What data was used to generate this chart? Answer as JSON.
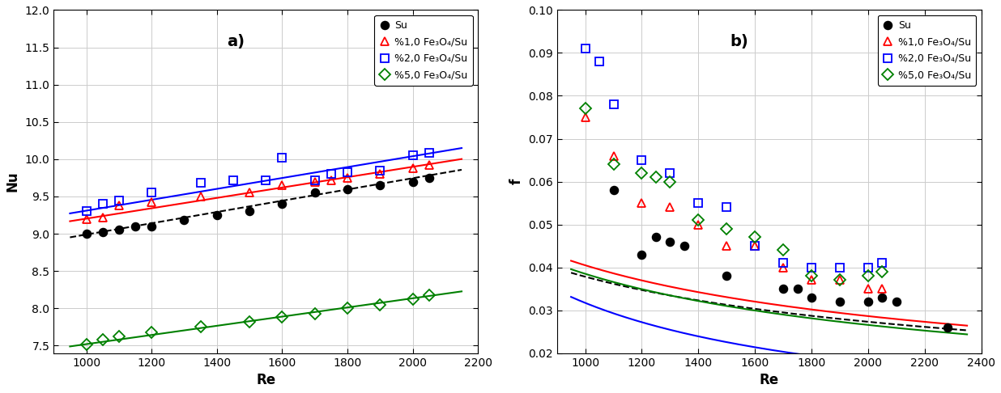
{
  "panel_a": {
    "title": "a)",
    "xlabel": "Re",
    "ylabel": "Nu",
    "xlim": [
      900,
      2200
    ],
    "ylim": [
      7.4,
      12.0
    ],
    "xticks": [
      1000,
      1200,
      1400,
      1600,
      1800,
      2000,
      2200
    ],
    "yticks": [
      7.5,
      8.0,
      8.5,
      9.0,
      9.5,
      10.0,
      10.5,
      11.0,
      11.5,
      12.0
    ],
    "series": [
      {
        "label": "Su",
        "color": "black",
        "marker": "o",
        "marker_fill": "black",
        "scatter_x": [
          1000,
          1050,
          1100,
          1150,
          1200,
          1300,
          1400,
          1500,
          1600,
          1700,
          1800,
          1900,
          2000,
          2050
        ],
        "scatter_y": [
          9.0,
          9.02,
          9.05,
          9.1,
          9.1,
          9.18,
          9.25,
          9.3,
          9.4,
          9.55,
          9.6,
          9.65,
          9.7,
          9.75
        ],
        "fit_slope": 0.000755,
        "fit_intercept": 8.235,
        "linestyle": "--"
      },
      {
        "label": "%1,0 Fe₃O₄/Su",
        "color": "red",
        "marker": "^",
        "marker_fill": "none",
        "scatter_x": [
          1000,
          1050,
          1100,
          1200,
          1350,
          1500,
          1600,
          1700,
          1750,
          1800,
          1900,
          2000,
          2050
        ],
        "scatter_y": [
          9.2,
          9.22,
          9.38,
          9.42,
          9.5,
          9.55,
          9.65,
          9.7,
          9.72,
          9.75,
          9.8,
          9.88,
          9.92
        ],
        "fit_slope": 0.000695,
        "fit_intercept": 8.508,
        "linestyle": "-"
      },
      {
        "label": "%2,0 Fe₃O₄/Su",
        "color": "blue",
        "marker": "s",
        "marker_fill": "none",
        "scatter_x": [
          1000,
          1050,
          1100,
          1200,
          1350,
          1450,
          1550,
          1600,
          1700,
          1750,
          1800,
          1900,
          2000,
          2050
        ],
        "scatter_y": [
          9.3,
          9.4,
          9.45,
          9.55,
          9.68,
          9.72,
          9.72,
          10.02,
          9.72,
          9.8,
          9.82,
          9.85,
          10.05,
          10.08
        ],
        "fit_slope": 0.00073,
        "fit_intercept": 8.58,
        "linestyle": "-"
      },
      {
        "label": "%5,0 Fe₃O₄/Su",
        "color": "green",
        "marker": "D",
        "marker_fill": "none",
        "scatter_x": [
          1000,
          1050,
          1100,
          1200,
          1350,
          1500,
          1600,
          1700,
          1800,
          1900,
          2000,
          2050
        ],
        "scatter_y": [
          7.52,
          7.58,
          7.62,
          7.68,
          7.75,
          7.82,
          7.88,
          7.93,
          8.0,
          8.05,
          8.12,
          8.18
        ],
        "fit_slope": 0.000615,
        "fit_intercept": 6.905,
        "linestyle": "-"
      }
    ]
  },
  "panel_b": {
    "title": "b)",
    "xlabel": "Re",
    "ylabel": "f",
    "xlim": [
      900,
      2400
    ],
    "ylim": [
      0.02,
      0.1
    ],
    "xticks": [
      1000,
      1200,
      1400,
      1600,
      1800,
      2000,
      2200,
      2400
    ],
    "yticks": [
      0.02,
      0.03,
      0.04,
      0.05,
      0.06,
      0.07,
      0.08,
      0.09,
      0.1
    ],
    "series": [
      {
        "label": "Su",
        "color": "black",
        "marker": "o",
        "marker_fill": "black",
        "scatter_x": [
          1100,
          1200,
          1250,
          1300,
          1350,
          1500,
          1700,
          1750,
          1800,
          1900,
          2000,
          2050,
          2100,
          2280
        ],
        "scatter_y": [
          0.058,
          0.043,
          0.047,
          0.046,
          0.045,
          0.038,
          0.035,
          0.035,
          0.033,
          0.032,
          0.032,
          0.033,
          0.032,
          0.026
        ],
        "fit_a": 0.972,
        "fit_b": -0.47,
        "linestyle": "--"
      },
      {
        "label": "%1,0 Fe₃O₄/Su",
        "color": "red",
        "marker": "^",
        "marker_fill": "none",
        "scatter_x": [
          1000,
          1100,
          1200,
          1300,
          1400,
          1500,
          1600,
          1700,
          1800,
          1900,
          2000,
          2050
        ],
        "scatter_y": [
          0.075,
          0.066,
          0.055,
          0.054,
          0.05,
          0.045,
          0.045,
          0.04,
          0.037,
          0.037,
          0.035,
          0.035
        ],
        "fit_a": 1.28,
        "fit_b": -0.5,
        "linestyle": "-"
      },
      {
        "label": "%2,0 Fe₃O₄/Su",
        "color": "blue",
        "marker": "s",
        "marker_fill": "none",
        "scatter_x": [
          1000,
          1050,
          1100,
          1200,
          1300,
          1400,
          1500,
          1600,
          1700,
          1800,
          1900,
          2000,
          2050
        ],
        "scatter_y": [
          0.091,
          0.088,
          0.078,
          0.065,
          0.062,
          0.055,
          0.054,
          0.045,
          0.041,
          0.04,
          0.04,
          0.04,
          0.041
        ],
        "fit_a": 10.5,
        "fit_b": -0.84,
        "linestyle": "-"
      },
      {
        "label": "%5,0 Fe₃O₄/Su",
        "color": "green",
        "marker": "D",
        "marker_fill": "none",
        "scatter_x": [
          1000,
          1100,
          1200,
          1250,
          1300,
          1400,
          1500,
          1600,
          1700,
          1800,
          1900,
          2000,
          2050
        ],
        "scatter_y": [
          0.077,
          0.064,
          0.062,
          0.061,
          0.06,
          0.051,
          0.049,
          0.047,
          0.044,
          0.038,
          0.037,
          0.038,
          0.039
        ],
        "fit_a": 1.55,
        "fit_b": -0.535,
        "linestyle": "-"
      }
    ]
  }
}
